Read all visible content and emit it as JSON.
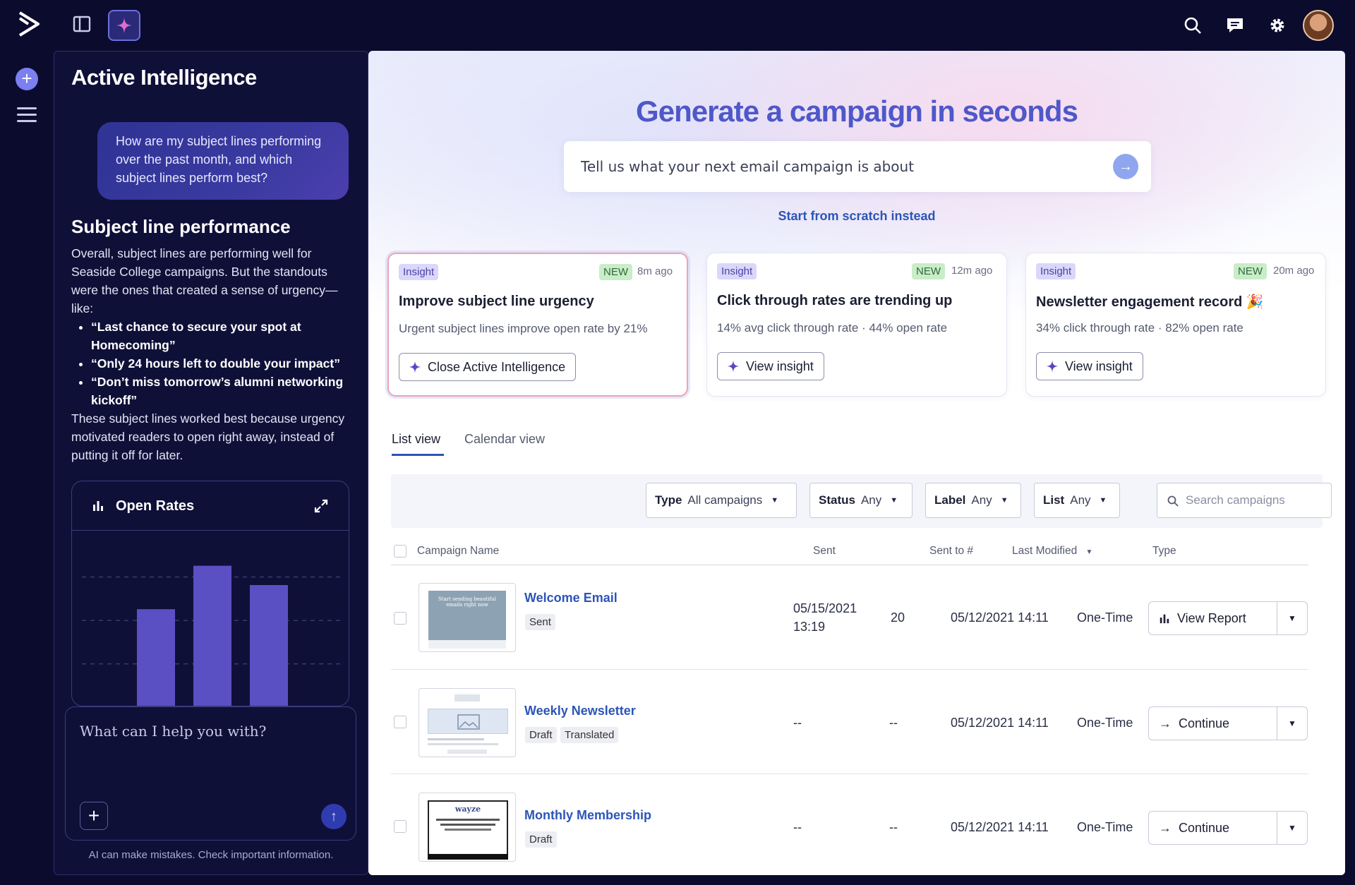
{
  "ai_panel": {
    "title": "Active Intelligence",
    "user_message": "How are my subject lines performing over the past month, and which subject lines perform best?",
    "response_title": "Subject line performance",
    "response_intro": "Overall, subject lines are performing well for Seaside College campaigns. But the standouts were the ones that created a sense of urgency—like:",
    "response_bullets": [
      "“Last chance to secure your spot at Homecoming”",
      "“Only 24 hours left to double your impact”",
      "“Don’t miss tomorrow’s alumni networking kickoff”"
    ],
    "response_outro": "These subject lines worked best because urgency motivated readers to open right away, instead of putting it off for later.",
    "chart_title": "Open Rates",
    "composer_placeholder": "What can I help you with?",
    "disclaimer": "AI can make mistakes. Check important information."
  },
  "chart_data": {
    "type": "bar",
    "title": "Open Rates",
    "categories": [
      "",
      "",
      ""
    ],
    "values": [
      0.6,
      0.87,
      0.75
    ],
    "ylim": [
      0,
      1
    ],
    "grid": true,
    "color": "#5b4fc4"
  },
  "main": {
    "hero_title": "Generate a campaign in seconds",
    "hero_placeholder": "Tell us what your next email campaign is about",
    "scratch_link": "Start from scratch instead",
    "insights": [
      {
        "badge": "Insight",
        "new_badge": "NEW",
        "ago": "8m ago",
        "title": "Improve subject line urgency",
        "subtitle": "Urgent subject lines improve open rate by 21%",
        "button": "Close Active Intelligence"
      },
      {
        "badge": "Insight",
        "new_badge": "NEW",
        "ago": "12m ago",
        "title": "Click through rates are trending up",
        "subtitle": "14% avg click through rate · 44% open rate",
        "button": "View insight"
      },
      {
        "badge": "Insight",
        "new_badge": "NEW",
        "ago": "20m ago",
        "title": "Newsletter engagement record 🎉",
        "subtitle": "34% click through rate · 82% open rate",
        "button": "View insight"
      }
    ],
    "tabs": [
      "List view",
      "Calendar view"
    ],
    "filters": [
      {
        "key": "Type",
        "value": "All campaigns"
      },
      {
        "key": "Status",
        "value": "Any"
      },
      {
        "key": "Label",
        "value": "Any"
      },
      {
        "key": "List",
        "value": "Any"
      }
    ],
    "search_placeholder": "Search campaigns",
    "columns": [
      "Campaign Name",
      "Sent",
      "Sent to #",
      "Last Modified",
      "Type"
    ],
    "rows": [
      {
        "name": "Welcome Email",
        "tags": [
          "Sent"
        ],
        "sent_date": "05/15/2021",
        "sent_time": "13:19",
        "sent_to": "20",
        "modified": "05/12/2021 14:11",
        "type": "One-Time",
        "action": "View Report"
      },
      {
        "name": "Weekly Newsletter",
        "tags": [
          "Draft",
          "Translated"
        ],
        "sent_date": "--",
        "sent_time": "",
        "sent_to": "--",
        "modified": "05/12/2021 14:11",
        "type": "One-Time",
        "action": "Continue"
      },
      {
        "name": "Monthly Membership",
        "tags": [
          "Draft"
        ],
        "sent_date": "--",
        "sent_time": "",
        "sent_to": "--",
        "modified": "05/12/2021 14:11",
        "type": "One-Time",
        "action": "Continue"
      }
    ],
    "thumb_texts": {
      "welcome": "Start sending beautiful emails right now",
      "wayze": "wayze"
    }
  },
  "colors": {
    "nav_bg": "#0b0b2e",
    "accent": "#4e58c9",
    "link": "#2c55b8",
    "bar": "#5b4fc4"
  },
  "icons": [
    "logo-icon",
    "panel-toggle-icon",
    "sparkle-icon",
    "search-icon",
    "chat-icon",
    "gear-icon",
    "avatar",
    "plus-icon",
    "menu-icon",
    "expand-icon",
    "bar-chart-icon",
    "arrow-right-icon",
    "arrow-up-icon",
    "chevron-down-icon"
  ]
}
